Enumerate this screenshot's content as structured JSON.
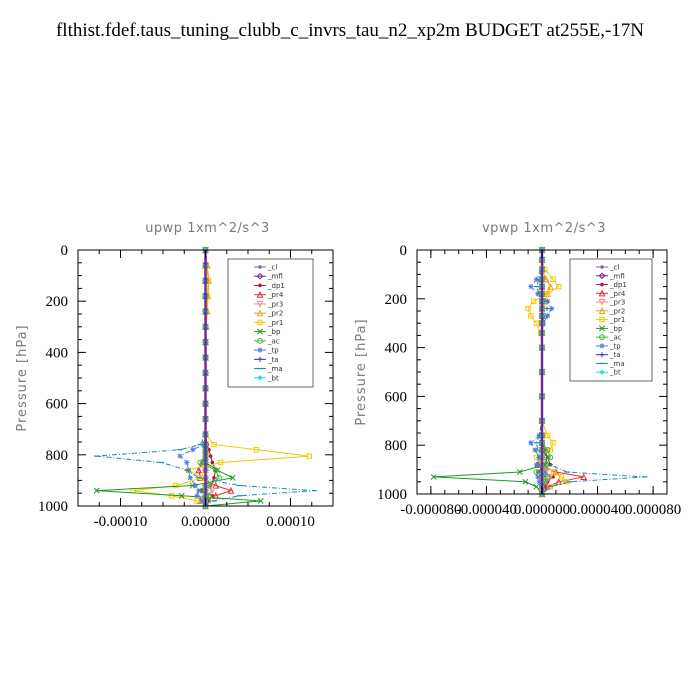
{
  "title": "flthist.fdef.taus_tuning_clubb_c_invrs_tau_n2_xp2m  BUDGET at255E,-17N",
  "legend_entries": [
    {
      "name": "_cl",
      "color": "#8a5fa8",
      "marker": "dot"
    },
    {
      "name": "_mfl",
      "color": "#7a1aa0",
      "marker": "diamond"
    },
    {
      "name": "_dp1",
      "color": "#b0183c",
      "marker": "dot"
    },
    {
      "name": "_pr4",
      "color": "#e0303a",
      "marker": "triangle"
    },
    {
      "name": "_pr3",
      "color": "#f08a8a",
      "marker": "triangle-down"
    },
    {
      "name": "_pr2",
      "color": "#f2a020",
      "marker": "triangle"
    },
    {
      "name": "_pr1",
      "color": "#f5c800",
      "marker": "square"
    },
    {
      "name": "_bp",
      "color": "#1c9a20",
      "marker": "x"
    },
    {
      "name": "_ac",
      "color": "#3ab83a",
      "marker": "circle"
    },
    {
      "name": "_tp",
      "color": "#4a7ee0",
      "marker": "star"
    },
    {
      "name": "_ta",
      "color": "#3a2ad0",
      "marker": "plus"
    },
    {
      "name": "_ma",
      "color": "#1a8ab0",
      "marker": "dash"
    },
    {
      "name": "_bt",
      "color": "#20e0d8",
      "marker": "diamond-filled"
    }
  ],
  "chart_data": [
    {
      "type": "line",
      "title": "upwp   1xm^2/s^3",
      "xlabel": "",
      "ylabel": "Pressure [hPa]",
      "xlim": [
        -0.00015,
        0.00015
      ],
      "ylim": [
        1000,
        0
      ],
      "y_inverted": true,
      "xticks": [
        -0.0001,
        0.0,
        0.0001
      ],
      "xtick_labels": [
        "-0.00010",
        "0.00000",
        "0.00010"
      ],
      "yticks": [
        0,
        200,
        400,
        600,
        800,
        1000
      ],
      "ytick_labels": [
        "0",
        "200",
        "400",
        "600",
        "800",
        "1000"
      ],
      "grid": false,
      "legend_position": "top-right",
      "pressure": [
        0,
        60,
        120,
        180,
        240,
        300,
        360,
        420,
        480,
        540,
        600,
        660,
        720,
        760,
        780,
        805,
        830,
        860,
        890,
        920,
        940,
        960,
        980,
        1000
      ],
      "series": [
        {
          "name": "_cl",
          "values": [
            0,
            0,
            0,
            0,
            0,
            0,
            0,
            0,
            0,
            0,
            0,
            0,
            0,
            0,
            0,
            0,
            0,
            0,
            0,
            0,
            0,
            0,
            0,
            0
          ]
        },
        {
          "name": "_mfl",
          "values": [
            0,
            0,
            0,
            0,
            0,
            0,
            0,
            0,
            0,
            0,
            0,
            0,
            0,
            0,
            0,
            0,
            0,
            0,
            0,
            0,
            0,
            0,
            0,
            0
          ]
        },
        {
          "name": "_dp1",
          "values": [
            0,
            0,
            0,
            0,
            0,
            0,
            0,
            0,
            0,
            0,
            0,
            0,
            0,
            2e-06,
            4e-06,
            6e-06,
            8e-06,
            1.2e-05,
            1e-05,
            6e-06,
            -4e-06,
            8e-06,
            4e-06,
            0
          ]
        },
        {
          "name": "_pr4",
          "values": [
            0,
            0,
            0,
            0,
            0,
            0,
            0,
            0,
            0,
            0,
            0,
            0,
            0,
            0,
            0,
            0,
            -4e-06,
            -8e-06,
            -6e-06,
            1.2e-05,
            3e-05,
            1.2e-05,
            -6e-06,
            0
          ]
        },
        {
          "name": "_pr3",
          "values": [
            0,
            0,
            0,
            0,
            0,
            0,
            0,
            0,
            0,
            0,
            0,
            0,
            0,
            0,
            0,
            0,
            0,
            0,
            0,
            4e-06,
            8e-06,
            2e-06,
            0,
            0
          ]
        },
        {
          "name": "_pr2",
          "values": [
            0,
            2e-06,
            4e-06,
            3e-06,
            2e-06,
            1e-06,
            0,
            0,
            0,
            0,
            0,
            0,
            0,
            0,
            0,
            0,
            0,
            0,
            0,
            0,
            0,
            0,
            0,
            0
          ]
        },
        {
          "name": "_pr1",
          "values": [
            0,
            1e-06,
            3e-06,
            2e-06,
            1e-06,
            0,
            0,
            0,
            0,
            0,
            0,
            0,
            0,
            1e-05,
            6e-05,
            0.000122,
            1.8e-05,
            -2e-05,
            -4e-06,
            -3.5e-05,
            -8.5e-05,
            -4e-05,
            -1e-05,
            0
          ]
        },
        {
          "name": "_bp",
          "values": [
            0,
            0,
            0,
            0,
            0,
            0,
            0,
            0,
            0,
            0,
            0,
            0,
            0,
            0,
            0,
            0,
            0,
            1.4e-05,
            3.2e-05,
            -1.5e-05,
            -0.000128,
            -2.8e-05,
            6.5e-05,
            0
          ]
        },
        {
          "name": "_ac",
          "values": [
            0,
            0,
            0,
            0,
            0,
            0,
            0,
            0,
            0,
            0,
            0,
            0,
            0,
            0,
            0,
            0,
            -6e-06,
            1.2e-05,
            1.6e-05,
            4e-06,
            -4e-06,
            4e-06,
            2e-06,
            0
          ]
        },
        {
          "name": "_tp",
          "values": [
            0,
            0,
            0,
            0,
            0,
            0,
            0,
            0,
            0,
            0,
            0,
            0,
            0,
            -2e-06,
            -1.5e-05,
            -3e-05,
            -2.2e-05,
            -2e-05,
            -1.8e-05,
            -1.2e-05,
            -8e-06,
            -1e-05,
            -4e-06,
            0
          ]
        },
        {
          "name": "_ta",
          "values": [
            0,
            0,
            0,
            0,
            0,
            0,
            0,
            0,
            0,
            0,
            0,
            0,
            0,
            0,
            0,
            0,
            0,
            0,
            0,
            0,
            0,
            0,
            0,
            0
          ]
        },
        {
          "name": "_ma",
          "values": [
            0,
            0,
            0,
            0,
            0,
            0,
            0,
            0,
            0,
            0,
            0,
            0,
            0,
            -6e-06,
            -3e-05,
            -0.000128,
            -5.2e-05,
            -2.2e-05,
            -8e-06,
            4e-05,
            0.000128,
            4e-05,
            1e-05,
            0
          ]
        },
        {
          "name": "_bt",
          "values": [
            0,
            0,
            0,
            0,
            0,
            0,
            0,
            0,
            0,
            0,
            0,
            0,
            0,
            0,
            0,
            0,
            0,
            0,
            0,
            0,
            0,
            0,
            0,
            0
          ]
        }
      ]
    },
    {
      "type": "line",
      "title": "vpwp   1xm^2/s^3",
      "xlabel": "",
      "ylabel": "Pressure [hPa]",
      "xlim": [
        -9e-05,
        9e-05
      ],
      "ylim": [
        1000,
        0
      ],
      "y_inverted": true,
      "xticks": [
        -8e-05,
        -4e-05,
        0.0,
        4e-05,
        8e-05
      ],
      "xtick_labels": [
        "-0.000080",
        "-0.000040",
        "0.000000",
        "0.000040",
        "0.000080"
      ],
      "yticks": [
        0,
        200,
        400,
        600,
        800,
        1000
      ],
      "ytick_labels": [
        "0",
        "200",
        "400",
        "600",
        "800",
        "1000"
      ],
      "grid": false,
      "legend_position": "top-right",
      "pressure": [
        0,
        40,
        80,
        120,
        150,
        180,
        210,
        240,
        270,
        300,
        340,
        400,
        500,
        600,
        700,
        760,
        790,
        820,
        850,
        880,
        910,
        930,
        950,
        970,
        1000
      ],
      "series": [
        {
          "name": "_cl",
          "values": [
            0,
            0,
            0,
            0,
            0,
            0,
            0,
            0,
            0,
            0,
            0,
            0,
            0,
            0,
            0,
            0,
            0,
            0,
            0,
            0,
            0,
            0,
            0,
            0,
            0
          ]
        },
        {
          "name": "_mfl",
          "values": [
            0,
            0,
            0,
            0,
            0,
            0,
            0,
            0,
            0,
            0,
            0,
            0,
            0,
            0,
            0,
            0,
            0,
            0,
            0,
            0,
            0,
            0,
            0,
            0,
            0
          ]
        },
        {
          "name": "_dp1",
          "values": [
            0,
            0,
            0,
            0,
            0,
            0,
            0,
            0,
            0,
            0,
            0,
            0,
            0,
            0,
            0,
            0,
            0,
            2e-06,
            4e-06,
            6e-06,
            -3e-06,
            8e-06,
            4e-06,
            2e-06,
            0
          ]
        },
        {
          "name": "_pr4",
          "values": [
            0,
            0,
            0,
            0,
            0,
            0,
            0,
            0,
            0,
            0,
            0,
            0,
            0,
            0,
            0,
            0,
            0,
            0,
            0,
            -3e-06,
            1e-05,
            3e-05,
            1.2e-05,
            4e-06,
            0
          ]
        },
        {
          "name": "_pr3",
          "values": [
            0,
            0,
            0,
            0,
            0,
            0,
            0,
            0,
            0,
            0,
            0,
            0,
            0,
            0,
            0,
            0,
            0,
            0,
            0,
            0,
            3e-06,
            6e-06,
            3e-06,
            0,
            0
          ]
        },
        {
          "name": "_pr2",
          "values": [
            0,
            0,
            0,
            3e-06,
            6e-06,
            4e-06,
            2e-06,
            0,
            0,
            0,
            0,
            0,
            0,
            0,
            0,
            0,
            0,
            0,
            0,
            0,
            0,
            0,
            0,
            0,
            0
          ]
        },
        {
          "name": "_pr1",
          "values": [
            0,
            0,
            2e-06,
            8e-06,
            1.2e-05,
            4e-06,
            -6e-06,
            -1e-05,
            -8e-06,
            -4e-06,
            -1e-06,
            0,
            0,
            0,
            0,
            4e-06,
            8e-06,
            6e-06,
            -4e-06,
            2e-06,
            8e-06,
            1.4e-05,
            1.8e-05,
            6e-06,
            0
          ]
        },
        {
          "name": "_bp",
          "values": [
            0,
            0,
            0,
            0,
            0,
            0,
            0,
            0,
            0,
            0,
            0,
            0,
            0,
            0,
            0,
            0,
            0,
            0,
            4e-06,
            2e-06,
            -1.6e-05,
            -7.8e-05,
            -1.2e-05,
            -4e-06,
            0
          ]
        },
        {
          "name": "_ac",
          "values": [
            0,
            0,
            0,
            0,
            0,
            0,
            0,
            0,
            0,
            0,
            0,
            0,
            0,
            0,
            0,
            0,
            0,
            4e-06,
            6e-06,
            3e-06,
            -4e-06,
            4e-06,
            2e-06,
            0,
            0
          ]
        },
        {
          "name": "_tp",
          "values": [
            0,
            0,
            0,
            -4e-06,
            -8e-06,
            -3e-06,
            4e-06,
            7e-06,
            4e-06,
            1e-06,
            0,
            0,
            0,
            0,
            0,
            -2e-06,
            -8e-06,
            -5e-06,
            -2e-06,
            -4e-06,
            2e-06,
            -3e-06,
            -2e-06,
            0,
            0
          ]
        },
        {
          "name": "_ta",
          "values": [
            0,
            0,
            0,
            0,
            0,
            0,
            0,
            0,
            0,
            0,
            0,
            0,
            0,
            0,
            0,
            0,
            0,
            0,
            0,
            0,
            0,
            0,
            0,
            0,
            0
          ]
        },
        {
          "name": "_ma",
          "values": [
            0,
            0,
            0,
            -2e-06,
            -4e-06,
            -2e-06,
            2e-06,
            4e-06,
            2e-06,
            0,
            0,
            0,
            0,
            0,
            0,
            -2e-06,
            -4e-06,
            -3e-06,
            -2e-06,
            6e-06,
            1.8e-05,
            7.4e-05,
            2e-05,
            6e-06,
            0
          ]
        },
        {
          "name": "_bt",
          "values": [
            0,
            0,
            0,
            0,
            0,
            0,
            0,
            0,
            0,
            0,
            0,
            0,
            0,
            0,
            0,
            0,
            0,
            0,
            0,
            0,
            0,
            0,
            0,
            0,
            0
          ]
        }
      ]
    }
  ]
}
